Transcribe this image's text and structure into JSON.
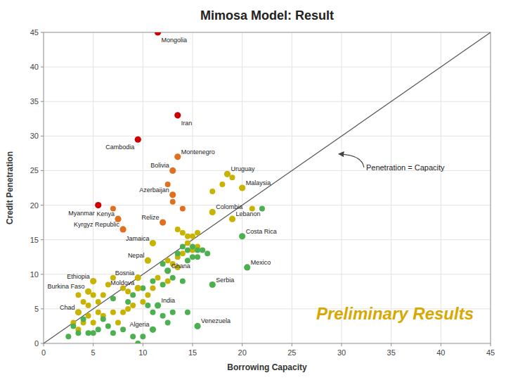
{
  "chart_data": {
    "type": "scatter",
    "title": "Mimosa Model: Result",
    "x_label": "Borrowing Capacity",
    "y_label": "Credit Penetration",
    "xlim": [
      0,
      45
    ],
    "ylim": [
      0,
      45
    ],
    "xticks": [
      0,
      5,
      10,
      15,
      20,
      25,
      30,
      35,
      40,
      45
    ],
    "yticks": [
      0,
      5,
      10,
      15,
      20,
      25,
      30,
      35,
      40,
      45
    ],
    "grid": true,
    "annotations": [
      {
        "text": "Penetration = Capacity",
        "x": 29.5,
        "y": 27.5
      },
      {
        "text": "Preliminary Results"
      }
    ],
    "series": [
      {
        "type": "line",
        "x": [
          0,
          45
        ],
        "y": [
          0,
          45
        ]
      },
      {
        "type": "scatter",
        "color": "#e07020",
        "x": [
          12.5,
          13.0,
          14.0,
          7.0
        ],
        "y": [
          23.0,
          20.5,
          19.5,
          19.5
        ]
      },
      {
        "type": "scatter",
        "color": "#c8b400",
        "x": [
          13.5,
          14.0,
          14.5,
          14.5,
          15.0,
          15.5,
          15.5,
          15.0,
          14.0,
          13.5,
          13.0,
          12.5,
          13.5,
          6.5,
          7.0,
          8.0,
          8.5,
          3.5,
          4.0,
          4.5,
          5.5,
          5.0,
          6.0,
          5.5,
          4.5,
          3.0,
          4.0,
          3.5,
          5.0,
          6.0,
          7.5,
          7.0,
          8.0,
          8.5,
          9.0,
          10.0,
          10.5,
          11.0,
          11.5,
          12.5,
          17.0,
          18.0,
          19.0,
          21.0
        ],
        "y": [
          16.5,
          16.0,
          15.5,
          14.5,
          15.5,
          16.0,
          14.0,
          13.5,
          13.0,
          12.5,
          11.5,
          12.0,
          11.0,
          8.5,
          9.5,
          8.0,
          7.5,
          7.0,
          6.0,
          5.5,
          6.0,
          7.0,
          7.0,
          4.5,
          4.0,
          3.0,
          3.0,
          2.0,
          3.0,
          4.0,
          3.0,
          4.5,
          4.5,
          5.0,
          5.5,
          6.0,
          7.0,
          8.0,
          9.5,
          9.0,
          22.0,
          23.0,
          24.0,
          19.5
        ]
      },
      {
        "type": "scatter",
        "color": "#4caf50",
        "x": [
          14.0,
          14.5,
          15.0,
          15.5,
          16.0,
          15.0,
          15.5,
          16.5,
          14.5,
          13.5,
          12.0,
          13.0,
          14.0,
          12.0,
          11.0,
          10.0,
          10.5,
          11.0,
          12.0,
          12.5,
          13.0,
          14.5,
          7.0,
          8.0,
          9.0,
          9.5,
          10.0,
          8.5,
          9.0,
          7.0,
          6.5,
          5.5,
          5.0,
          4.5,
          3.5,
          2.5,
          3.0,
          4.0,
          6.0,
          22.0
        ],
        "y": [
          14.0,
          13.5,
          14.0,
          13.5,
          13.5,
          12.5,
          12.5,
          13.0,
          12.0,
          13.0,
          11.5,
          9.5,
          9.0,
          8.5,
          9.0,
          8.0,
          5.5,
          4.5,
          4.0,
          3.0,
          4.5,
          4.5,
          1.5,
          2.0,
          1.0,
          0.0,
          1.0,
          6.0,
          7.0,
          6.5,
          2.5,
          2.0,
          1.5,
          1.5,
          1.5,
          1.0,
          2.5,
          3.5,
          3.5,
          19.5
        ]
      },
      {
        "type": "scatter",
        "labels": [
          "Mongolia",
          "Iran",
          "Cambodia",
          "Myanmar",
          "Montenegro",
          "Bolivia",
          "Azerbaijan",
          "Kenya",
          "Kyrgyz Republic",
          "Relize",
          "Uruguay",
          "Malaysia",
          "Colombia",
          "Lebanon",
          "Jamaica",
          "Nepal",
          "Bosnia",
          "Moldova",
          "Ethiopia",
          "Burkina Faso",
          "Chad",
          "Ghana",
          "Serbia",
          "India",
          "Algeria",
          "Venezuela",
          "Costa Rica",
          "Mexico"
        ],
        "x": [
          11.5,
          13.5,
          9.5,
          5.5,
          13.5,
          13.0,
          13.0,
          7.5,
          8.0,
          12.0,
          18.5,
          20.0,
          17.0,
          19.0,
          11.0,
          10.5,
          9.5,
          9.5,
          5.0,
          4.5,
          3.5,
          12.5,
          17.0,
          11.5,
          11.0,
          15.5,
          20.0,
          20.5
        ],
        "y": [
          45.0,
          33.0,
          29.5,
          20.0,
          27.0,
          25.0,
          21.5,
          18.0,
          16.5,
          17.5,
          24.5,
          22.5,
          19.0,
          18.0,
          14.5,
          12.0,
          9.5,
          8.0,
          9.0,
          7.5,
          4.5,
          10.5,
          8.5,
          5.5,
          2.0,
          2.5,
          15.5,
          11.0
        ],
        "colors": [
          "#cc0000",
          "#cc0000",
          "#cc0000",
          "#cc0000",
          "#e07020",
          "#e07020",
          "#e07020",
          "#e07020",
          "#e07020",
          "#e07020",
          "#c8b400",
          "#c8b400",
          "#c8b400",
          "#c8b400",
          "#c8b400",
          "#c8b400",
          "#c8b400",
          "#c8b400",
          "#c8b400",
          "#c8b400",
          "#c8b400",
          "#4caf50",
          "#4caf50",
          "#4caf50",
          "#4caf50",
          "#4caf50",
          "#4caf50",
          "#4caf50"
        ]
      }
    ]
  }
}
